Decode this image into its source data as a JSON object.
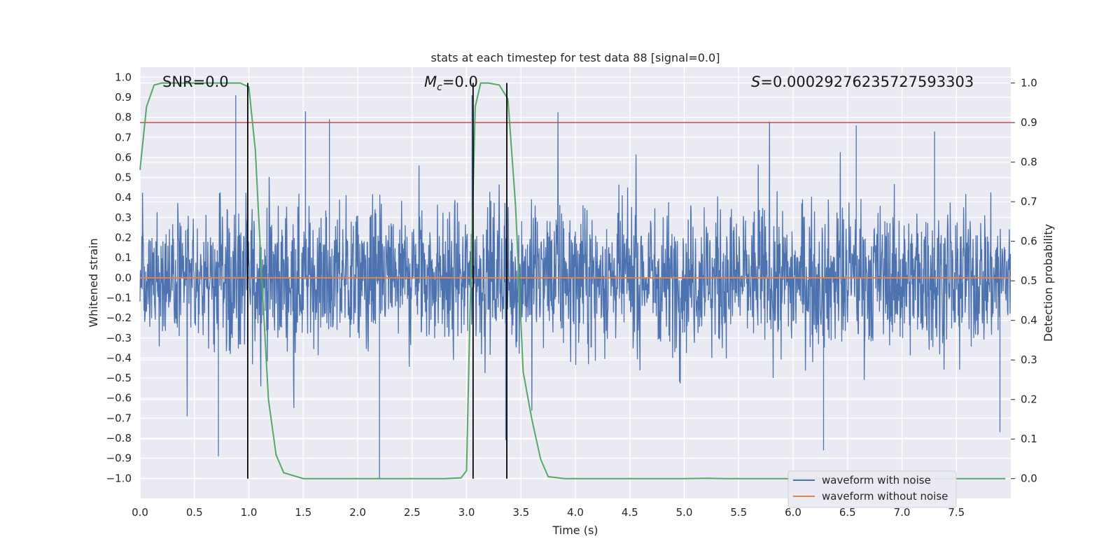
{
  "chart_data": {
    "type": "line",
    "title": "stats at each timestep for test data 88 [signal=0.0]",
    "xlabel": "Time (s)",
    "ylabel": "Whitened strain",
    "y2label": "Detection probability",
    "xlim": [
      0.0,
      8.0
    ],
    "ylim": [
      -1.1,
      1.05
    ],
    "y2lim": [
      -0.05,
      1.04
    ],
    "x_ticks": [
      "0.0",
      "0.5",
      "1.0",
      "1.5",
      "2.0",
      "2.5",
      "3.0",
      "3.5",
      "4.0",
      "4.5",
      "5.0",
      "5.5",
      "6.0",
      "6.5",
      "7.0",
      "7.5"
    ],
    "y_ticks": [
      "1.0",
      "0.9",
      "0.8",
      "0.7",
      "0.6",
      "0.5",
      "0.4",
      "0.3",
      "0.2",
      "0.1",
      "0.0",
      "−0.1",
      "−0.2",
      "−0.3",
      "−0.4",
      "−0.5",
      "−0.6",
      "−0.7",
      "−0.8",
      "−0.9",
      "−1.0"
    ],
    "y2_ticks": [
      "1.0",
      "0.9",
      "0.8",
      "0.7",
      "0.6",
      "0.5",
      "0.4",
      "0.3",
      "0.2",
      "0.1",
      "0.0"
    ],
    "annotations": {
      "snr": "SNR=0.0",
      "mc_symbol": "M",
      "mc_sub": "c",
      "mc_value": "=0.0",
      "s_symbol": "S",
      "s_value": "=0.00029276235727593303"
    },
    "legend": {
      "position": "lower-right",
      "entries": [
        "waveform with noise",
        "waveform without noise"
      ]
    },
    "series": [
      {
        "name": "waveform with noise",
        "color": "#4c72b0",
        "type": "noise",
        "envelope": 0.35,
        "spike_max": 0.92,
        "spike_min": -1.0
      },
      {
        "name": "waveform without noise",
        "color": "#dd8452",
        "x": [
          0.0,
          8.0
        ],
        "y": [
          0.0,
          0.0
        ]
      },
      {
        "name": "detection probability",
        "color": "#55a868",
        "axis": "right",
        "x": [
          0.0,
          0.06,
          0.13,
          0.2,
          0.3,
          0.5,
          0.8,
          0.92,
          1.0,
          1.06,
          1.12,
          1.18,
          1.25,
          1.32,
          1.5,
          2.0,
          2.5,
          2.8,
          2.95,
          3.0,
          3.03,
          3.08,
          3.13,
          3.2,
          3.3,
          3.38,
          3.45,
          3.52,
          3.6,
          3.68,
          3.75,
          3.9,
          4.5,
          5.0,
          5.2,
          5.4,
          6.0,
          7.0,
          7.95
        ],
        "y": [
          0.78,
          0.94,
          0.995,
          1.0,
          1.0,
          1.0,
          1.0,
          1.0,
          0.99,
          0.83,
          0.5,
          0.2,
          0.06,
          0.015,
          0.0,
          0.0,
          0.0,
          0.0,
          0.002,
          0.02,
          0.4,
          0.94,
          1.0,
          1.0,
          0.995,
          0.96,
          0.69,
          0.27,
          0.15,
          0.05,
          0.005,
          0.0,
          0.0,
          0.0,
          0.001,
          0.0,
          0.0,
          0.0,
          0.0
        ]
      },
      {
        "name": "threshold",
        "color": "#c44e52",
        "axis": "right",
        "value": 0.9
      }
    ],
    "vertical_lines": [
      0.99,
      3.06,
      3.37
    ]
  }
}
